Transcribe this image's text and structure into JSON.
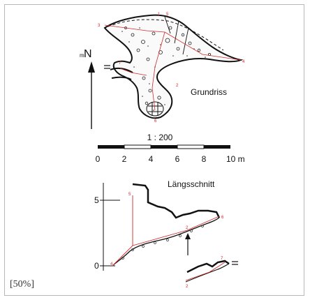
{
  "plan": {
    "title": "Grundriss",
    "north_prefix": "m",
    "north_label": "N",
    "stations": [
      "3",
      "1",
      "5",
      "7",
      "4",
      "2",
      "6"
    ]
  },
  "scale": {
    "ratio": "1 : 200",
    "ticks": [
      "0",
      "2",
      "4",
      "6",
      "8",
      "10 m"
    ]
  },
  "section": {
    "title": "Längsschnitt",
    "axis_labels": [
      "5",
      "0"
    ],
    "stations": [
      "5",
      "6",
      "2",
      "4",
      "7",
      "2"
    ]
  },
  "zoom_label": "[50%]",
  "colors": {
    "ink": "#111111",
    "survey": "#d42a2a",
    "frame": "#b8b8b8"
  }
}
